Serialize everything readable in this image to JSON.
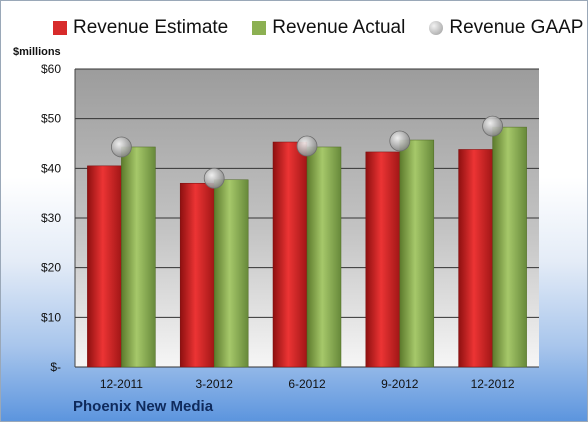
{
  "chart_data": {
    "type": "bar",
    "categories": [
      "12-2011",
      "3-2012",
      "6-2012",
      "9-2012",
      "12-2012"
    ],
    "series": [
      {
        "name": "Revenue Estimate",
        "kind": "bar",
        "values": [
          40.5,
          37.0,
          45.3,
          43.3,
          43.8
        ],
        "color": "#d72b2b"
      },
      {
        "name": "Revenue Actual",
        "kind": "bar",
        "values": [
          44.3,
          37.7,
          44.3,
          45.7,
          48.3
        ],
        "color": "#8cb052"
      },
      {
        "name": "Revenue GAAP",
        "kind": "marker",
        "values": [
          44.3,
          38.0,
          44.5,
          45.5,
          48.5
        ],
        "color": "#b8b8b8"
      }
    ],
    "ylabel": "$millions",
    "ylim": [
      0,
      60
    ],
    "yticks": [
      0,
      10,
      20,
      30,
      40,
      50,
      60
    ],
    "ytick_labels": [
      "$-",
      "$10",
      "$20",
      "$30",
      "$40",
      "$50",
      "$60"
    ],
    "grid": true,
    "legend_position": "top"
  },
  "footer": {
    "company": "Phoenix New Media"
  }
}
